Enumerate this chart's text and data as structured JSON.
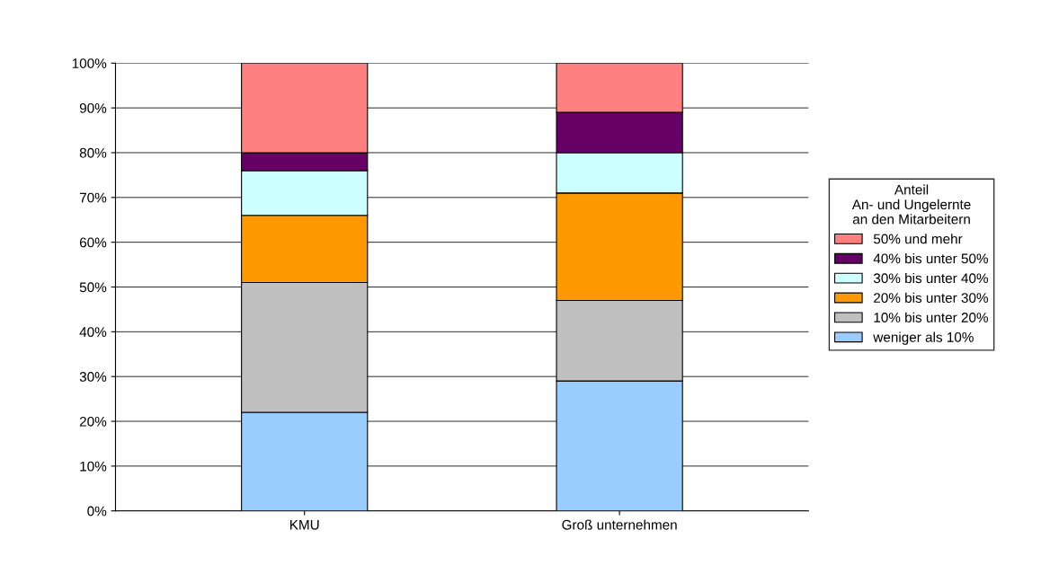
{
  "chart_data": {
    "type": "bar",
    "stacked": true,
    "categories": [
      "KMU",
      "Groß unternehmen"
    ],
    "series": [
      {
        "name": "weniger als 10%",
        "color": "#99ccff",
        "values": [
          22,
          29
        ]
      },
      {
        "name": "10% bis unter 20%",
        "color": "#c0c0c0",
        "values": [
          29,
          18
        ]
      },
      {
        "name": "20% bis unter 30%",
        "color": "#ff9900",
        "values": [
          15,
          24
        ]
      },
      {
        "name": "30% bis unter 40%",
        "color": "#ccffff",
        "values": [
          10,
          9
        ]
      },
      {
        "name": "40% bis unter 50%",
        "color": "#660066",
        "values": [
          4,
          9
        ]
      },
      {
        "name": "50% und mehr",
        "color": "#ff8080",
        "values": [
          20,
          11
        ]
      }
    ],
    "legend_title": "Anteil\nAn- und Ungelernte\nan den Mitarbeitern",
    "legend": "right",
    "grid": "y",
    "ylim": [
      0,
      100
    ],
    "yticks": [
      {
        "value": 0,
        "label": "0%"
      },
      {
        "value": 10,
        "label": "10%"
      },
      {
        "value": 20,
        "label": "20%"
      },
      {
        "value": 30,
        "label": "30%"
      },
      {
        "value": 40,
        "label": "40%"
      },
      {
        "value": 50,
        "label": "50%"
      },
      {
        "value": 60,
        "label": "60%"
      },
      {
        "value": 70,
        "label": "70%"
      },
      {
        "value": 80,
        "label": "80%"
      },
      {
        "value": 90,
        "label": "90%"
      },
      {
        "value": 100,
        "label": "100%"
      }
    ]
  }
}
